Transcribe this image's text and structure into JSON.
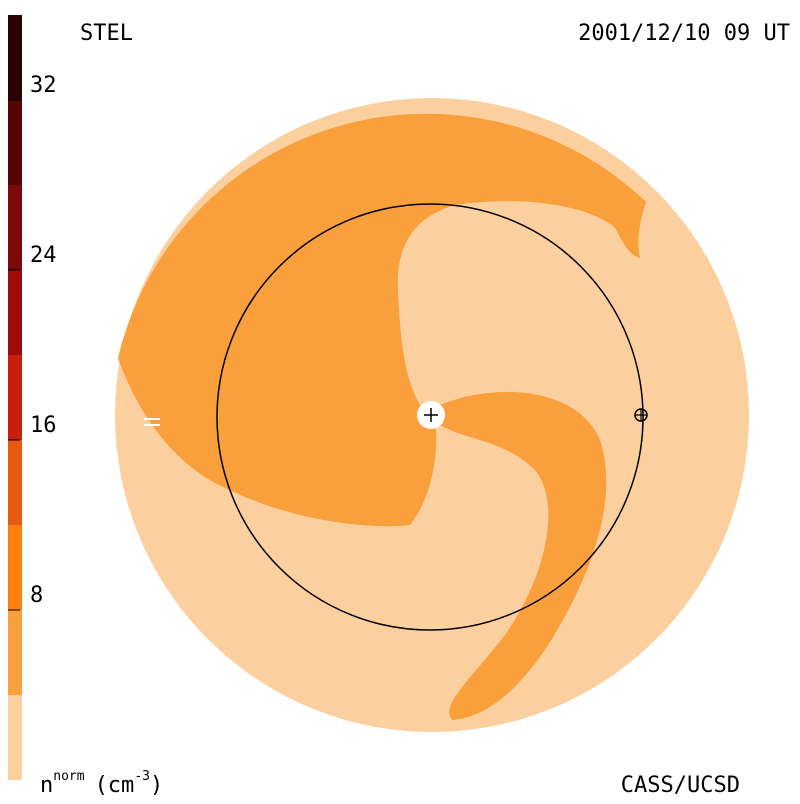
{
  "chart_data": {
    "type": "colorbar",
    "title": "STEL",
    "timestamp": "2001/12/10 09 UT",
    "credit": "CASS/UCSD",
    "label": {
      "base": "n",
      "sup": "norm",
      "unit": "(cm",
      "unit_sup": "-3",
      "close": ")"
    },
    "bounds": [
      0,
      4,
      8,
      12,
      16,
      20,
      24,
      28,
      32,
      36
    ],
    "colors": [
      "#fccf9e",
      "#f9a03c",
      "#ff800f",
      "#e85a12",
      "#c8200f",
      "#a00c0c",
      "#7c0808",
      "#560505",
      "#2a0202"
    ],
    "ylim": [
      0,
      36
    ],
    "yticks": [
      8,
      16,
      24,
      32
    ]
  }
}
